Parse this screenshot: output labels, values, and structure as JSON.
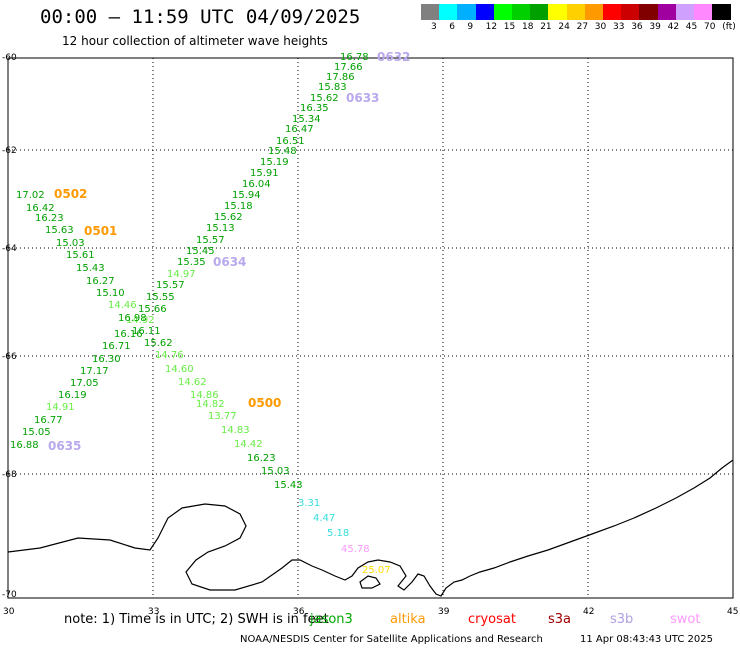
{
  "header": {
    "title": "00:00 – 11:59 UTC 04/09/2025",
    "subtitle": "12 hour collection of altimeter wave heights"
  },
  "legend": {
    "colors": [
      "#808080",
      "#00ffff",
      "#00b0ff",
      "#0000ff",
      "#00ff00",
      "#00d000",
      "#00a000",
      "#ffff00",
      "#ffd000",
      "#ff9900",
      "#ff0000",
      "#cc0000",
      "#800000",
      "#a000a0",
      "#d0a0ff",
      "#ff88ff",
      "#000000"
    ],
    "labels": [
      "3",
      "6",
      "9",
      "12",
      "15",
      "18",
      "21",
      "24",
      "27",
      "30",
      "33",
      "36",
      "39",
      "42",
      "45",
      "70",
      "(ft)"
    ]
  },
  "axes": {
    "x_ticks": [
      "30",
      "33",
      "36",
      "39",
      "42",
      "45"
    ],
    "y_ticks": [
      "-60",
      "-62",
      "-64",
      "-66",
      "-68",
      "-70"
    ]
  },
  "passes": {
    "p0632": "0632",
    "p0633": "0633",
    "p0634": "0634",
    "p0635": "0635",
    "p0500": "0500",
    "p0501": "0501",
    "p0502": "0502"
  },
  "wave_values": {
    "a_track": [
      "16.78",
      "17.66",
      "17.86",
      "15.83",
      "15.62",
      "16.35",
      "15.34",
      "16.47",
      "16.51",
      "15.48",
      "15.19",
      "15.91",
      "16.04",
      "15.94",
      "15.18",
      "15.62",
      "15.13",
      "15.57",
      "15.45",
      "15.35",
      "14.97",
      "15.57",
      "15.55",
      "15.66",
      "14.92",
      "16.11",
      "15.62",
      "14.76",
      "14.60",
      "14.62",
      "14.86",
      "14.82",
      "13.77",
      "14.83",
      "14.42",
      "16.23",
      "15.03",
      "15.43",
      "3.31",
      "4.47",
      "5.18",
      "45.78",
      "25.07"
    ],
    "b_track": [
      "17.02",
      "16.42",
      "16.23",
      "15.63",
      "15.03",
      "15.61",
      "15.43",
      "16.27",
      "15.10",
      "14.46",
      "16.98",
      "16.16",
      "16.71",
      "16.30",
      "17.17",
      "17.05",
      "16.19",
      "14.91",
      "16.77",
      "15.05",
      "16.88"
    ]
  },
  "footer": {
    "note": "note:  1) Time is in UTC;  2) SWH is in feet",
    "satellites": [
      "jason3",
      "altika",
      "cryosat",
      "s3a",
      "s3b",
      "swot"
    ],
    "satellite_colors": [
      "#00aa00",
      "#ff9900",
      "#ff0000",
      "#a00000",
      "#b0a0e0",
      "#ff99ff"
    ],
    "credit": "NOAA/NESDIS Center for Satellite Applications and Research",
    "timestamp": "11 Apr 08:43:43 UTC 2025"
  }
}
